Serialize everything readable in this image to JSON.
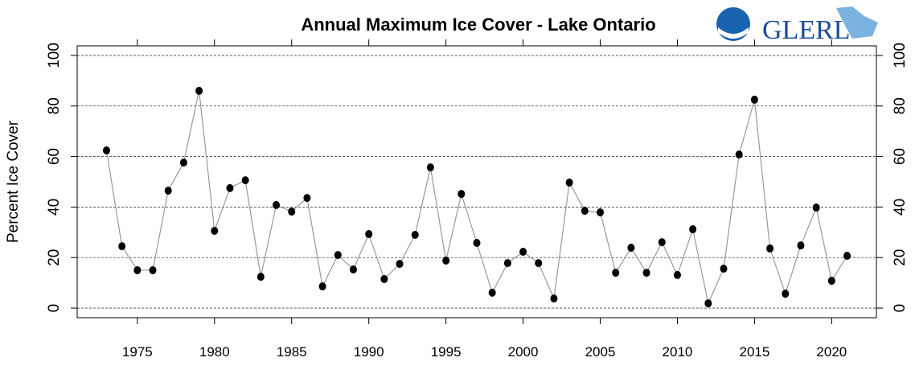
{
  "chart_data": {
    "type": "line",
    "title": "Annual Maximum Ice Cover - Lake Ontario",
    "logo_text": "GLERL",
    "ylabel": "Percent Ice Cover",
    "x": [
      1973,
      1974,
      1975,
      1976,
      1977,
      1978,
      1979,
      1980,
      1981,
      1982,
      1983,
      1984,
      1985,
      1986,
      1987,
      1988,
      1989,
      1990,
      1991,
      1992,
      1993,
      1994,
      1995,
      1996,
      1997,
      1998,
      1999,
      2000,
      2001,
      2002,
      2003,
      2004,
      2005,
      2006,
      2007,
      2008,
      2009,
      2010,
      2011,
      2012,
      2013,
      2014,
      2015,
      2016,
      2017,
      2018,
      2019,
      2020,
      2021
    ],
    "values": [
      62.4,
      24.5,
      15.0,
      15.0,
      46.5,
      57.6,
      86.0,
      30.6,
      47.5,
      50.6,
      12.4,
      40.8,
      38.2,
      43.6,
      8.6,
      21.0,
      15.3,
      29.3,
      11.5,
      17.5,
      29.0,
      55.7,
      18.8,
      45.2,
      25.8,
      6.1,
      17.8,
      22.3,
      17.8,
      3.8,
      49.7,
      38.5,
      37.9,
      14.0,
      23.9,
      14.0,
      26.1,
      13.1,
      31.2,
      1.9,
      15.6,
      60.8,
      82.5,
      23.6,
      5.7,
      24.8,
      39.8,
      10.8,
      20.7
    ],
    "color": "#000000",
    "line_color": "#999999",
    "xlim": [
      1971.1,
      2022.9
    ],
    "ylim": [
      -3.8,
      103.8
    ],
    "xticks": [
      1975,
      1980,
      1985,
      1990,
      1995,
      2000,
      2005,
      2010,
      2015,
      2020
    ],
    "yticks": [
      0,
      20,
      40,
      60,
      80,
      100
    ],
    "grid": true,
    "right_axis": true
  }
}
